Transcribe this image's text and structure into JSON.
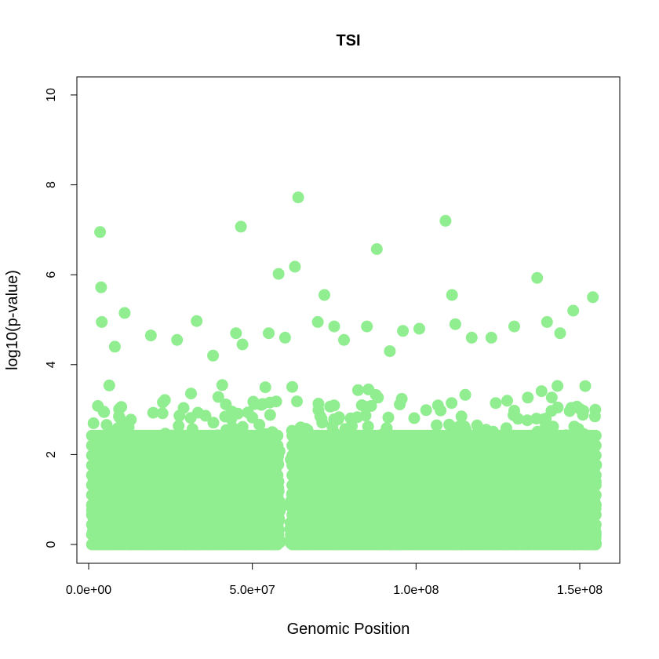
{
  "chart_data": {
    "type": "scatter",
    "title": "TSI",
    "xlabel": "Genomic Position",
    "ylabel": "log10(p-value)",
    "xlim": [
      0,
      155000000
    ],
    "ylim": [
      0,
      10
    ],
    "xticks": [
      0,
      50000000,
      100000000,
      150000000
    ],
    "xtick_labels": [
      "0.0e+00",
      "5.0e+07",
      "1.0e+08",
      "1.5e+08"
    ],
    "yticks": [
      0,
      2,
      4,
      6,
      8,
      10
    ],
    "ytick_labels": [
      "0",
      "2",
      "4",
      "6",
      "8",
      "10"
    ],
    "grid": false,
    "legend": "none",
    "point_color": "#90EE90",
    "gap_range": [
      58500000,
      61500000
    ],
    "series": [
      {
        "x": [
          3500000,
          46500000,
          64000000,
          109000000,
          88000000,
          58000000,
          63000000,
          137000000,
          3800000,
          111000000,
          72000000,
          154000000,
          148000000,
          11000000,
          33000000,
          4000000,
          112000000,
          70000000,
          55000000,
          75000000,
          85000000,
          96000000,
          130000000,
          140000000,
          45000000,
          19000000,
          8000000,
          27000000,
          38000000,
          101000000,
          123000000,
          144000000,
          60000000,
          92000000,
          47000000,
          78000000,
          117000000
        ],
        "y": [
          6.95,
          7.07,
          7.72,
          7.2,
          6.57,
          6.02,
          6.18,
          5.93,
          5.72,
          5.55,
          5.55,
          5.5,
          5.2,
          5.15,
          4.97,
          4.95,
          4.9,
          4.95,
          4.7,
          4.85,
          4.85,
          4.75,
          4.85,
          4.95,
          4.7,
          4.65,
          4.4,
          4.55,
          4.2,
          4.8,
          4.6,
          4.7,
          4.6,
          4.3,
          4.45,
          4.55,
          4.6
        ]
      }
    ]
  }
}
